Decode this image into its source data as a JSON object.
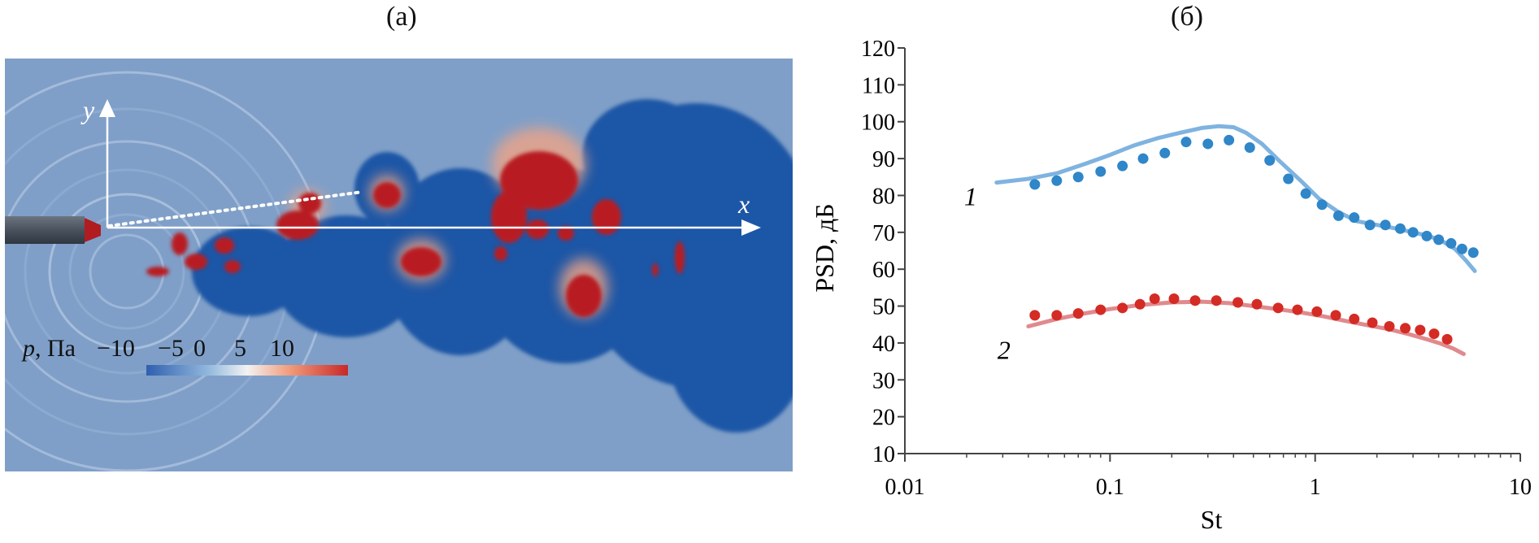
{
  "panel_a": {
    "label": "(а)",
    "x_axis_label": "x",
    "y_axis_label": "y",
    "colorbar": {
      "variable": "p",
      "unit": ", Па",
      "ticks": [
        "−10",
        "−5",
        "0",
        "5",
        "10"
      ],
      "range": [
        -10,
        10
      ],
      "colors": [
        "#2f5fb0",
        "#8fb6dc",
        "#f2f2f2",
        "#f2a080",
        "#c82828"
      ]
    }
  },
  "panel_b": {
    "label": "(б)",
    "chart_data": {
      "type": "line",
      "xlabel": "St",
      "ylabel": "PSD, дБ",
      "xscale": "log",
      "xlim": [
        0.01,
        10
      ],
      "ylim": [
        10,
        120
      ],
      "xticks": [
        0.01,
        0.1,
        1,
        10
      ],
      "xtick_labels": [
        "0.01",
        "0.1",
        "1",
        "10"
      ],
      "yticks": [
        10,
        20,
        30,
        40,
        50,
        60,
        70,
        80,
        90,
        100,
        110,
        120
      ],
      "ytick_labels": [
        "10",
        "20",
        "30",
        "40",
        "50",
        "60",
        "70",
        "80",
        "90",
        "100",
        "110",
        "120"
      ],
      "grid": false,
      "series": [
        {
          "name": "1",
          "color": "#7fb3e0",
          "point_color": "#2f86c8",
          "line": {
            "x": [
              0.028,
              0.04,
              0.055,
              0.075,
              0.1,
              0.13,
              0.17,
              0.22,
              0.28,
              0.34,
              0.4,
              0.46,
              0.55,
              0.68,
              0.85,
              1.05,
              1.3,
              1.6,
              2.0,
              2.5,
              3.0,
              3.6,
              4.2,
              4.8,
              5.4,
              6.0
            ],
            "y": [
              83.5,
              84.5,
              86,
              88.5,
              91,
              93.5,
              95.5,
              97,
              98.3,
              98.8,
              98.5,
              97,
              94,
              89,
              84,
              79,
              75.5,
              73,
              72,
              71,
              70,
              69,
              67.5,
              65.5,
              62.5,
              59.5
            ]
          },
          "points": {
            "x": [
              0.043,
              0.055,
              0.07,
              0.09,
              0.115,
              0.145,
              0.185,
              0.235,
              0.3,
              0.38,
              0.48,
              0.6,
              0.74,
              0.9,
              1.08,
              1.3,
              1.55,
              1.85,
              2.2,
              2.6,
              3.0,
              3.5,
              4.0,
              4.6,
              5.2,
              5.9
            ],
            "y": [
              83,
              84,
              85,
              86.5,
              88,
              90,
              91.5,
              94.5,
              94,
              95,
              93,
              89.5,
              84.5,
              80.5,
              77.5,
              74.5,
              74,
              72,
              72,
              71,
              70,
              69,
              68,
              67,
              65.5,
              64.5
            ]
          },
          "curve_label": "1"
        },
        {
          "name": "2",
          "color": "#e08a8e",
          "point_color": "#d42b24",
          "line": {
            "x": [
              0.04,
              0.055,
              0.075,
              0.1,
              0.14,
              0.2,
              0.28,
              0.38,
              0.5,
              0.65,
              0.85,
              1.1,
              1.4,
              1.8,
              2.3,
              2.9,
              3.5,
              4.1,
              4.7,
              5.3
            ],
            "y": [
              44.5,
              46.5,
              48,
              49.2,
              50.3,
              51,
              51.2,
              50.8,
              50,
              49.2,
              48.3,
              47.2,
              46,
              44.8,
              43.7,
              42.3,
              41,
              39.8,
              38.5,
              37
            ]
          },
          "points": {
            "x": [
              0.043,
              0.055,
              0.07,
              0.09,
              0.115,
              0.14,
              0.165,
              0.205,
              0.26,
              0.33,
              0.42,
              0.52,
              0.66,
              0.82,
              1.02,
              1.26,
              1.55,
              1.9,
              2.3,
              2.75,
              3.25,
              3.8,
              4.4
            ],
            "y": [
              47.5,
              47.5,
              48,
              49,
              49.5,
              50.5,
              52,
              52,
              51.5,
              51.5,
              51,
              50.5,
              49.5,
              49,
              48.5,
              47.5,
              46.5,
              45.5,
              44.5,
              44,
              43.5,
              42.5,
              41
            ]
          },
          "curve_label": "2"
        }
      ]
    }
  }
}
